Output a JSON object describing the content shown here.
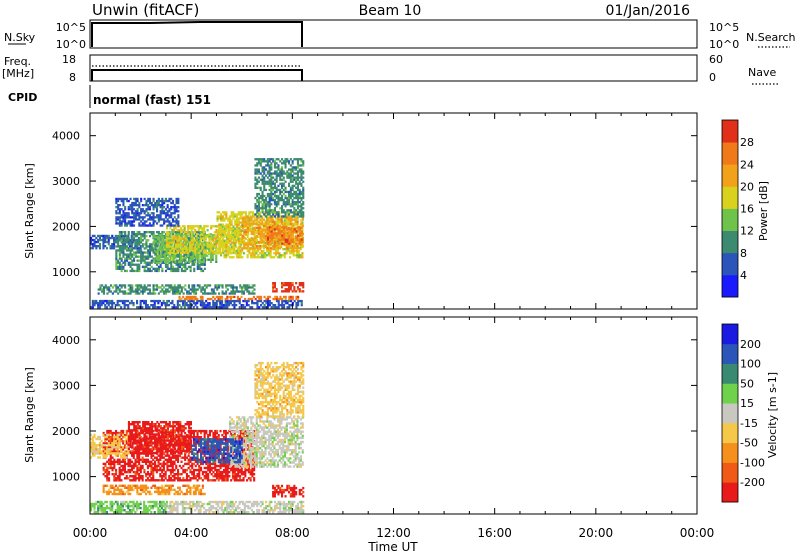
{
  "header": {
    "station": "Unwin (fitACF)",
    "beam": "Beam 10",
    "date": "01/Jan/2016"
  },
  "status_panels": {
    "nsky_label": "N.Sky",
    "nsky_ticks": [
      "10^5",
      "10^0"
    ],
    "nsearch_label": "N.Search",
    "nsearch_ticks": [
      "10^5",
      "10^0"
    ],
    "freq_label": "Freq.",
    "freq_unit": "[MHz]",
    "freq_ticks": [
      "18",
      "8"
    ],
    "nave_label": "Nave",
    "nave_ticks": [
      "60",
      "0"
    ],
    "cpid_label": "CPID",
    "cpid_text": "normal (fast) 151"
  },
  "colors": {
    "power": [
      "#1a1aff",
      "#2b55b8",
      "#3c8a70",
      "#6fc24a",
      "#d8d21f",
      "#f2a21a",
      "#f07a1a",
      "#e0301a"
    ],
    "velocity": [
      "#e81a1a",
      "#f05a16",
      "#f5901c",
      "#f5c84a",
      "#c8c8c0",
      "#6fd24a",
      "#3a8a72",
      "#2b55b8",
      "#1a1ae0"
    ]
  },
  "chart_data": [
    {
      "type": "heatmap",
      "panel": "power",
      "xlabel": "Time UT",
      "ylabel": "Slant Range [km]",
      "xlim": [
        0,
        24
      ],
      "ylim": [
        180,
        4500
      ],
      "x_tick_labels": [
        "00:00",
        "04:00",
        "08:00",
        "12:00",
        "16:00",
        "20:00",
        "00:00"
      ],
      "y_tick_labels": [
        "1000",
        "2000",
        "3000",
        "4000"
      ],
      "colorbar": {
        "label": "Power [dB]",
        "tick_labels": [
          "4",
          "8",
          "12",
          "16",
          "20",
          "24",
          "28"
        ]
      },
      "data_extent_hours": [
        0,
        8.5
      ],
      "regions": [
        {
          "t": [
            0.0,
            8.4
          ],
          "r": [
            200,
            380
          ],
          "level": 1
        },
        {
          "t": [
            3.5,
            8.4
          ],
          "r": [
            380,
            460
          ],
          "level": 6
        },
        {
          "t": [
            7.2,
            8.4
          ],
          "r": [
            550,
            750
          ],
          "level": 7
        },
        {
          "t": [
            0.3,
            6.5
          ],
          "r": [
            500,
            700
          ],
          "level": 2
        },
        {
          "t": [
            0.0,
            2.0
          ],
          "r": [
            1500,
            1800
          ],
          "level": 1
        },
        {
          "t": [
            1.0,
            4.5
          ],
          "r": [
            1000,
            1900
          ],
          "level": 2
        },
        {
          "t": [
            2.5,
            5.0
          ],
          "r": [
            1200,
            1800
          ],
          "level": 3
        },
        {
          "t": [
            3.0,
            6.0
          ],
          "r": [
            1400,
            2000
          ],
          "level": 4
        },
        {
          "t": [
            5.0,
            8.4
          ],
          "r": [
            1300,
            2300
          ],
          "level": 4
        },
        {
          "t": [
            6.0,
            8.4
          ],
          "r": [
            1500,
            2200
          ],
          "level": 5
        },
        {
          "t": [
            7.0,
            8.4
          ],
          "r": [
            1600,
            2000
          ],
          "level": 6
        },
        {
          "t": [
            6.5,
            8.4
          ],
          "r": [
            2200,
            3500
          ],
          "level": 2
        },
        {
          "t": [
            1.0,
            3.5
          ],
          "r": [
            2000,
            2600
          ],
          "level": 1
        }
      ]
    },
    {
      "type": "heatmap",
      "panel": "velocity",
      "xlabel": "Time UT",
      "ylabel": "Slant Range [km]",
      "xlim": [
        0,
        24
      ],
      "ylim": [
        180,
        4500
      ],
      "x_tick_labels": [
        "00:00",
        "04:00",
        "08:00",
        "12:00",
        "16:00",
        "20:00",
        "00:00"
      ],
      "y_tick_labels": [
        "1000",
        "2000",
        "3000",
        "4000"
      ],
      "colorbar": {
        "label": "Velocity [m s-1]",
        "tick_labels": [
          "200",
          "100",
          "50",
          "15",
          "-15",
          "-50",
          "-100",
          "-200"
        ]
      },
      "data_extent_hours": [
        0,
        8.5
      ],
      "regions": [
        {
          "t": [
            0.0,
            3.0
          ],
          "r": [
            200,
            450
          ],
          "level": 5
        },
        {
          "t": [
            3.0,
            8.4
          ],
          "r": [
            200,
            450
          ],
          "level": 4
        },
        {
          "t": [
            7.2,
            8.4
          ],
          "r": [
            550,
            800
          ],
          "level": 0
        },
        {
          "t": [
            0.5,
            4.5
          ],
          "r": [
            600,
            800
          ],
          "level": 2
        },
        {
          "t": [
            0.5,
            6.5
          ],
          "r": [
            900,
            2000
          ],
          "level": 0
        },
        {
          "t": [
            0.0,
            1.5
          ],
          "r": [
            1400,
            1900
          ],
          "level": 3
        },
        {
          "t": [
            5.5,
            8.4
          ],
          "r": [
            1200,
            2300
          ],
          "level": 4
        },
        {
          "t": [
            1.5,
            4.0
          ],
          "r": [
            1500,
            2200
          ],
          "level": 0
        },
        {
          "t": [
            6.5,
            8.4
          ],
          "r": [
            2300,
            3500
          ],
          "level": 3
        },
        {
          "t": [
            4.0,
            6.0
          ],
          "r": [
            1300,
            1800
          ],
          "level": 7
        }
      ]
    }
  ]
}
